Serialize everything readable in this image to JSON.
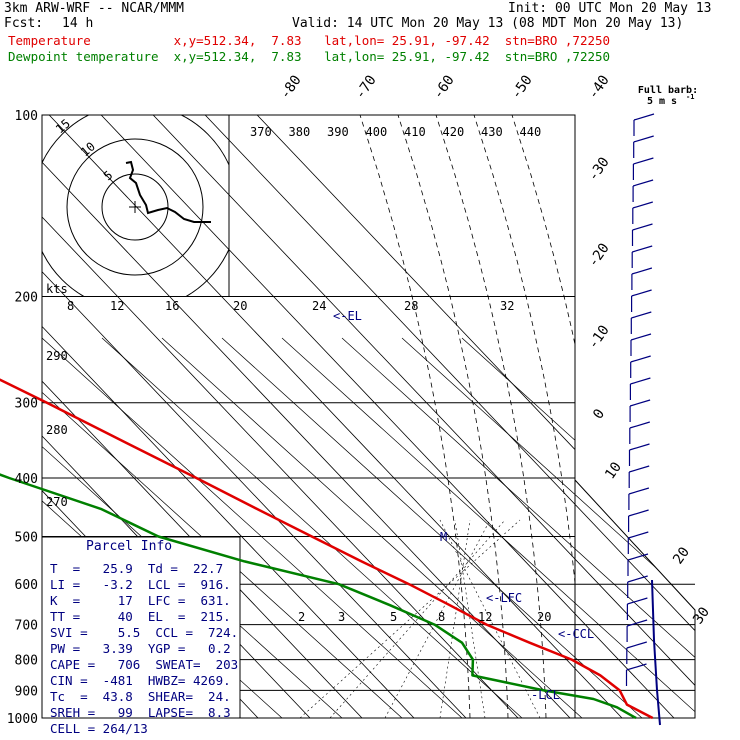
{
  "header": {
    "model": "3km ARW-WRF -- NCAR/MMM",
    "init": "Init: 00 UTC Mon 20 May 13",
    "fcst_label": "Fcst:",
    "fcst_value": "14 h",
    "valid": "Valid: 14 UTC Mon 20 May 13 (08 MDT Mon 20 May 13)",
    "temp_line": "Temperature           x,y=512.34,  7.83   lat,lon= 25.91, -97.42  stn=BRO ,72250",
    "dew_line": "Dewpoint temperature  x,y=512.34,  7.83   lat,lon= 25.91, -97.42  stn=BRO ,72250"
  },
  "barb_legend": {
    "line1": "Full barb:",
    "line2": "5 m s",
    "sup": "-1"
  },
  "colors": {
    "temperature": "#e00000",
    "dewpoint": "#008000",
    "parcel": "#000080",
    "grid": "#000000"
  },
  "chart_data": {
    "type": "skew-T log-p sounding",
    "pressure_levels": [
      100,
      200,
      300,
      400,
      500,
      600,
      700,
      800,
      900,
      1000
    ],
    "pressure_labels": [
      "100",
      "200",
      "300",
      "400",
      "500",
      "600",
      "700",
      "800",
      "900",
      "1000"
    ],
    "temp_labels": [
      "-80",
      "-70",
      "-60",
      "-50",
      "-40",
      "-30",
      "-20",
      "-10",
      "0",
      "10",
      "20",
      "30",
      "40"
    ],
    "theta_labels": [
      "370",
      "380",
      "390",
      "400",
      "410",
      "420",
      "430",
      "440"
    ],
    "theta_left_labels": [
      "290",
      "280",
      "270"
    ],
    "mixing_ratio_labels": [
      "2",
      "3",
      "5",
      "8",
      "12",
      "20"
    ],
    "knots_labels": [
      "kts",
      "8",
      "12",
      "16",
      "20",
      "24",
      "28",
      "32"
    ],
    "hodograph_labels": [
      "15",
      "10",
      "5"
    ],
    "markers": {
      "el": "<-EL",
      "lfc": "<-LFC",
      "ccl": "<-CCL",
      "lcl": "-LCL",
      "m": "M"
    },
    "temperature": [
      {
        "p": 1000,
        "t": 25.9
      },
      {
        "p": 950,
        "t": 23.4
      },
      {
        "p": 900,
        "t": 24.6
      },
      {
        "p": 850,
        "t": 23.6
      },
      {
        "p": 800,
        "t": 21.0
      },
      {
        "p": 750,
        "t": 16.0
      },
      {
        "p": 700,
        "t": 11.0
      },
      {
        "p": 650,
        "t": 7.5
      },
      {
        "p": 600,
        "t": 3.5
      },
      {
        "p": 550,
        "t": -1.5
      },
      {
        "p": 500,
        "t": -6.5
      },
      {
        "p": 450,
        "t": -12.0
      },
      {
        "p": 400,
        "t": -18.0
      },
      {
        "p": 350,
        "t": -25.0
      },
      {
        "p": 300,
        "t": -33.0
      },
      {
        "p": 250,
        "t": -43.0
      },
      {
        "p": 200,
        "t": -54.0
      },
      {
        "p": 175,
        "t": -60.0
      },
      {
        "p": 150,
        "t": -65.0
      },
      {
        "p": 135,
        "t": -67.0
      },
      {
        "p": 120,
        "t": -66.0
      },
      {
        "p": 110,
        "t": -64.0
      },
      {
        "p": 100,
        "t": -63.0
      }
    ],
    "dewpoint": [
      {
        "p": 1000,
        "t": 22.7
      },
      {
        "p": 960,
        "t": 21.0
      },
      {
        "p": 930,
        "t": 18.0
      },
      {
        "p": 900,
        "t": 10.0
      },
      {
        "p": 850,
        "t": -1.0
      },
      {
        "p": 800,
        "t": 2.0
      },
      {
        "p": 750,
        "t": 3.0
      },
      {
        "p": 700,
        "t": 1.0
      },
      {
        "p": 650,
        "t": -4.0
      },
      {
        "p": 600,
        "t": -10.0
      },
      {
        "p": 550,
        "t": -24.0
      },
      {
        "p": 500,
        "t": -36.0
      },
      {
        "p": 450,
        "t": -42.0
      },
      {
        "p": 400,
        "t": -54.0
      },
      {
        "p": 350,
        "t": -66.0
      },
      {
        "p": 300,
        "t": -67.0
      },
      {
        "p": 250,
        "t": -56.0
      },
      {
        "p": 200,
        "t": -64.0
      },
      {
        "p": 170,
        "t": -76.0
      },
      {
        "p": 150,
        "t": -87.0
      },
      {
        "p": 135,
        "t": -92.0
      },
      {
        "p": 120,
        "t": -92.0
      },
      {
        "p": 110,
        "t": -94.0
      },
      {
        "p": 100,
        "t": -96.0
      }
    ]
  },
  "parcel_info": {
    "title": "Parcel Info",
    "rows": [
      "T  =   25.9  Td =  22.7",
      "LI =   -3.2  LCL =  916.",
      "K  =     17  LFC =  631.",
      "TT =     40  EL  =  215.",
      "SVI =    5.5  CCL =  724.",
      "PW =   3.39  YGP =   0.2",
      "CAPE =   706  SWEAT=  203",
      "CIN =  -481  HWBZ= 4269.",
      "Tc  =  43.8  SHEAR=  24.",
      "SREH =   99  LAPSE=  8.3",
      "CELL = 264/13"
    ]
  }
}
